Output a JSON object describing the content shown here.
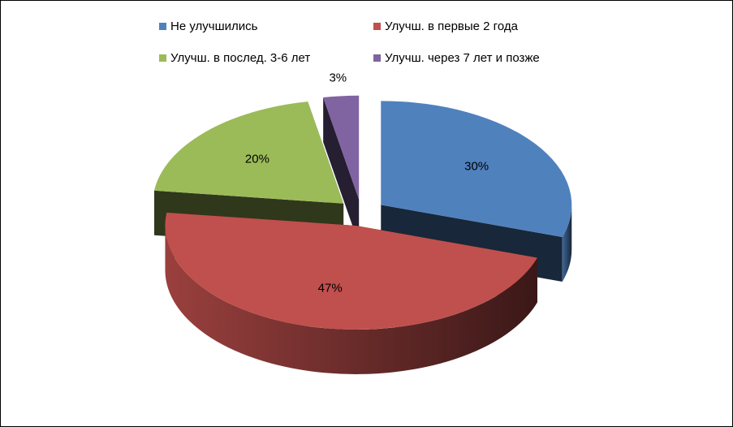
{
  "chart_data": {
    "type": "pie3d",
    "categories": [
      "Не улучшились",
      "Улучш. в первые 2 года",
      "Улучш. в послед. 3-6 лет",
      "Улучш. через 7 лет и позже"
    ],
    "values": [
      30,
      47,
      20,
      3
    ],
    "value_labels": [
      "30%",
      "47%",
      "20%",
      "3%"
    ],
    "colors": [
      "#4f81bd",
      "#c0504d",
      "#9bbb59",
      "#8064a2"
    ],
    "legend": "top"
  }
}
